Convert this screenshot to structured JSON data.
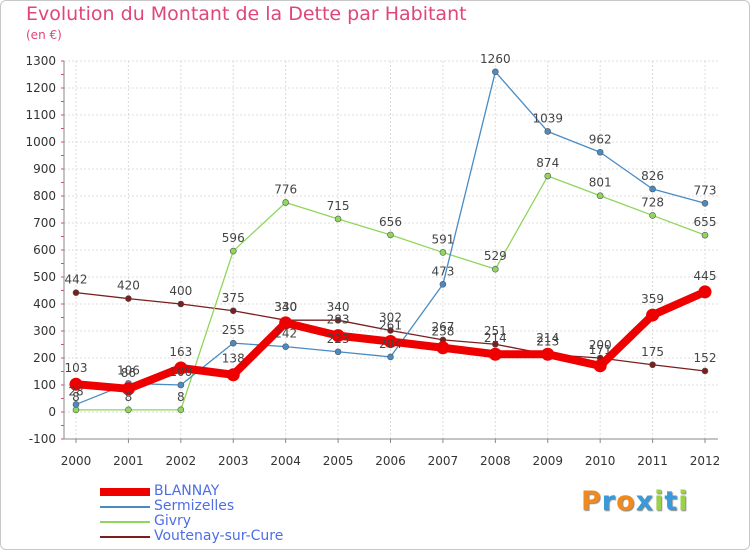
{
  "chart_data": {
    "type": "line",
    "title": "Evolution du Montant de la Dette par Habitant",
    "unit": "(en €)",
    "x": [
      2000,
      2001,
      2002,
      2003,
      2004,
      2005,
      2006,
      2007,
      2008,
      2009,
      2010,
      2011,
      2012
    ],
    "ylim": [
      -100,
      1300
    ],
    "yticks": [
      -100,
      0,
      100,
      200,
      300,
      400,
      500,
      600,
      700,
      800,
      900,
      1000,
      1100,
      1200,
      1300
    ],
    "grid": true,
    "legend_position": "bottom-left",
    "series": [
      {
        "name": "Voutenay-sur-Cure",
        "color": "#7a1f1f",
        "values": [
          442,
          420,
          400,
          375,
          340,
          340,
          302,
          267,
          251,
          213,
          200,
          175,
          152
        ]
      },
      {
        "name": "Givry",
        "color": "#8fd65a",
        "values": [
          8,
          8,
          8,
          596,
          776,
          715,
          656,
          591,
          529,
          874,
          801,
          728,
          655
        ]
      },
      {
        "name": "Sermizelles",
        "color": "#4a8bc4",
        "values": [
          28,
          106,
          100,
          255,
          242,
          223,
          204,
          473,
          1260,
          1039,
          962,
          826,
          773
        ]
      },
      {
        "name": "BLANNAY",
        "color": "#ee0000",
        "values": [
          103,
          86,
          163,
          138,
          330,
          283,
          261,
          238,
          214,
          214,
          171,
          359,
          445
        ]
      }
    ],
    "legend_order": [
      "BLANNAY",
      "Sermizelles",
      "Givry",
      "Voutenay-sur-Cure"
    ]
  },
  "branding": {
    "logo_letters": [
      "P",
      "r",
      "o",
      "x",
      "i",
      "t",
      "i"
    ],
    "logo_colors": [
      "#f08a1e",
      "#3a9ad9",
      "#f08a1e",
      "#3a9ad9",
      "#9bd14a",
      "#3a9ad9",
      "#9bd14a"
    ]
  }
}
